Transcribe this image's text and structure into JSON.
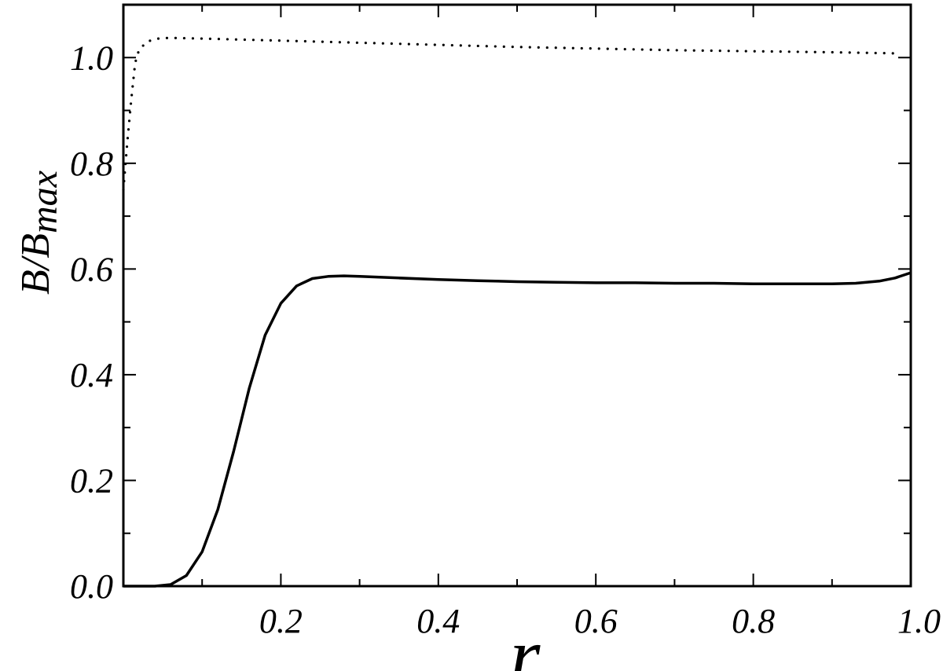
{
  "chart_data": {
    "type": "line",
    "title": "",
    "xlabel": "r",
    "ylabel_main": "B/B",
    "ylabel_sub": "max",
    "xlim": [
      0.0,
      1.0
    ],
    "ylim": [
      0.0,
      1.1
    ],
    "x_ticks": [
      0.2,
      0.4,
      0.6,
      0.8,
      1.0
    ],
    "x_tick_labels": [
      "0.2",
      "0.4",
      "0.6",
      "0.8",
      "1.0"
    ],
    "y_ticks": [
      0.0,
      0.2,
      0.4,
      0.6,
      0.8,
      1.0
    ],
    "y_tick_labels": [
      "0.0",
      "0.2",
      "0.4",
      "0.6",
      "0.8",
      "1.0"
    ],
    "grid": false,
    "legend": "none",
    "series": [
      {
        "style": "solid",
        "color": "#000000",
        "x": [
          0.0,
          0.02,
          0.04,
          0.06,
          0.08,
          0.1,
          0.12,
          0.14,
          0.16,
          0.18,
          0.2,
          0.22,
          0.24,
          0.26,
          0.28,
          0.3,
          0.35,
          0.4,
          0.45,
          0.5,
          0.55,
          0.6,
          0.65,
          0.7,
          0.75,
          0.8,
          0.85,
          0.9,
          0.93,
          0.96,
          0.98,
          1.0
        ],
        "y": [
          0.0,
          0.0,
          0.0,
          0.003,
          0.02,
          0.065,
          0.145,
          0.255,
          0.375,
          0.475,
          0.535,
          0.568,
          0.582,
          0.586,
          0.587,
          0.586,
          0.583,
          0.58,
          0.578,
          0.576,
          0.575,
          0.574,
          0.574,
          0.573,
          0.573,
          0.572,
          0.572,
          0.572,
          0.573,
          0.577,
          0.583,
          0.593
        ]
      },
      {
        "style": "dotted",
        "color": "#000000",
        "x": [
          0.0,
          0.005,
          0.01,
          0.015,
          0.02,
          0.03,
          0.04,
          0.05,
          0.07,
          0.1,
          0.15,
          0.2,
          0.3,
          0.4,
          0.5,
          0.6,
          0.7,
          0.8,
          0.9,
          0.98
        ],
        "y": [
          0.75,
          0.84,
          0.92,
          0.99,
          1.015,
          1.03,
          1.035,
          1.037,
          1.037,
          1.036,
          1.034,
          1.032,
          1.028,
          1.024,
          1.02,
          1.017,
          1.014,
          1.012,
          1.01,
          1.008
        ]
      }
    ]
  }
}
